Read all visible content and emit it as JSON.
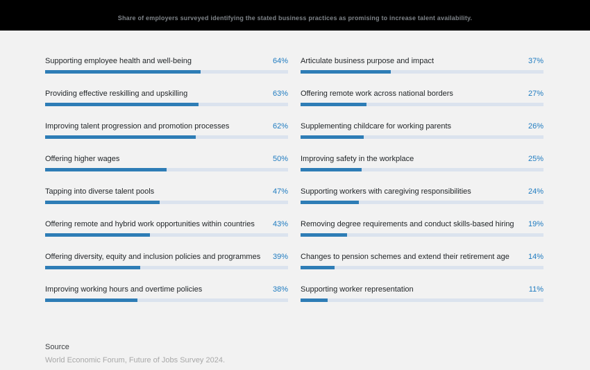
{
  "header": {
    "title": "Share of employers surveyed identifying the stated business practices as promising to increase talent availability."
  },
  "chart_data": {
    "type": "bar",
    "orientation": "horizontal",
    "value_unit": "%",
    "value_axis_max": 100,
    "grid": false,
    "legend": "none",
    "title": "Share of employers surveyed identifying the stated business practices as promising to increase talent availability.",
    "categories": [
      "Supporting employee health and well-being",
      "Providing effective reskilling and upskilling",
      "Improving talent progression and promotion processes",
      "Offering higher wages",
      "Tapping into diverse talent pools",
      "Offering remote and hybrid work opportunities within countries",
      "Offering diversity, equity and inclusion policies and programmes",
      "Improving working hours and overtime policies",
      "Articulate business purpose and impact",
      "Offering remote work across national borders",
      "Supplementing childcare for working parents",
      "Improving safety in the workplace",
      "Supporting workers with caregiving responsibilities",
      "Removing degree requirements and conduct skills-based hiring",
      "Changes to pension schemes and extend their retirement age",
      "Supporting worker representation"
    ],
    "values": [
      64,
      63,
      62,
      50,
      47,
      43,
      39,
      38,
      37,
      27,
      26,
      25,
      24,
      19,
      14,
      11
    ],
    "columns": [
      {
        "items": [
          {
            "label": "Supporting employee health and well-being",
            "value": 64,
            "display": "64%"
          },
          {
            "label": "Providing effective reskilling and upskilling",
            "value": 63,
            "display": "63%"
          },
          {
            "label": "Improving talent progression and promotion processes",
            "value": 62,
            "display": "62%"
          },
          {
            "label": "Offering higher wages",
            "value": 50,
            "display": "50%"
          },
          {
            "label": "Tapping into diverse talent pools",
            "value": 47,
            "display": "47%"
          },
          {
            "label": "Offering remote and hybrid work opportunities within countries",
            "value": 43,
            "display": "43%"
          },
          {
            "label": "Offering diversity, equity and inclusion policies and programmes",
            "value": 39,
            "display": "39%"
          },
          {
            "label": "Improving working hours and overtime policies",
            "value": 38,
            "display": "38%"
          }
        ]
      },
      {
        "items": [
          {
            "label": "Articulate business purpose and impact",
            "value": 37,
            "display": "37%"
          },
          {
            "label": "Offering remote work across national borders",
            "value": 27,
            "display": "27%"
          },
          {
            "label": "Supplementing childcare for working parents",
            "value": 26,
            "display": "26%"
          },
          {
            "label": "Improving safety in the workplace",
            "value": 25,
            "display": "25%"
          },
          {
            "label": "Supporting workers with caregiving responsibilities",
            "value": 24,
            "display": "24%"
          },
          {
            "label": "Removing degree requirements and conduct skills-based hiring",
            "value": 19,
            "display": "19%"
          },
          {
            "label": "Changes to pension schemes and extend their retirement age",
            "value": 14,
            "display": "14%"
          },
          {
            "label": "Supporting worker representation",
            "value": 11,
            "display": "11%"
          }
        ]
      }
    ]
  },
  "source": {
    "label": "Source",
    "text": "World Economic Forum, Future of Jobs Survey 2024."
  },
  "colors": {
    "background": "#f2f2f2",
    "header_background": "#000000",
    "header_text": "#7e8388",
    "bar_fill": "#2e7db6",
    "bar_track": "#dbe3ee",
    "value_text": "#1e7bc0",
    "label_text": "#1f2326",
    "source_text": "#a8a8a8"
  }
}
